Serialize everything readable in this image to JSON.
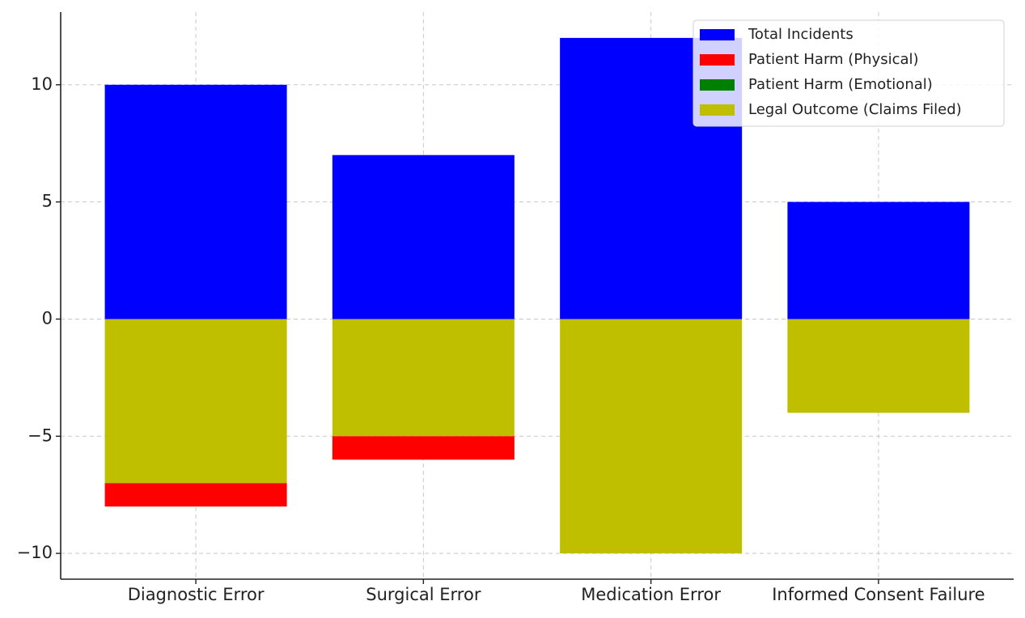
{
  "chart_data": {
    "type": "bar",
    "categories": [
      "Diagnostic Error",
      "Surgical Error",
      "Medication Error",
      "Informed Consent Failure"
    ],
    "series": [
      {
        "name": "Total Incidents",
        "color": "#0000ff",
        "values": [
          10,
          7,
          12,
          5
        ]
      },
      {
        "name": "Patient Harm (Physical)",
        "color": "#ff0000",
        "values": [
          -1,
          -1,
          0,
          0
        ]
      },
      {
        "name": "Patient Harm (Emotional)",
        "color": "#008000",
        "values": [
          0,
          0,
          0,
          0
        ]
      },
      {
        "name": "Legal Outcome (Claims Filed)",
        "color": "#bfbf00",
        "values": [
          -7,
          -5,
          -10,
          -4
        ]
      }
    ],
    "ylim": [
      -11.1,
      13.1
    ],
    "yticks": [
      {
        "value": -10,
        "label": "−10"
      },
      {
        "value": -5,
        "label": "−5"
      },
      0,
      5,
      10
    ],
    "grid": true,
    "legend": "upper right"
  }
}
